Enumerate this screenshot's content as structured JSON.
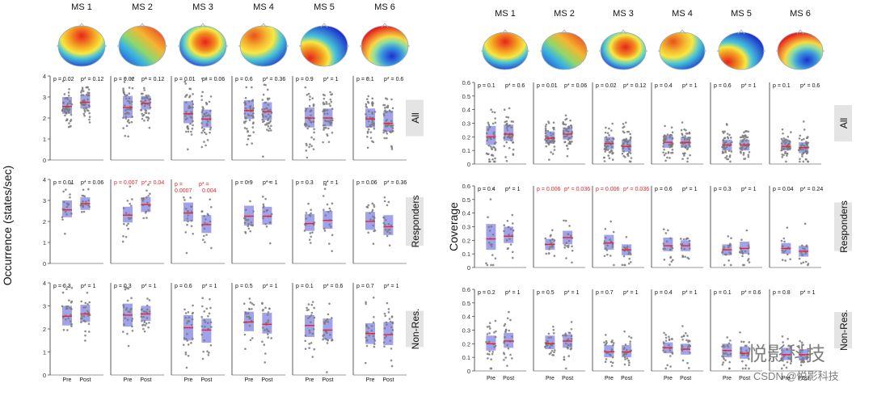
{
  "ms_labels": [
    "MS 1",
    "MS 2",
    "MS 3",
    "MS 4",
    "MS 5",
    "MS 6"
  ],
  "row_labels": [
    "All",
    "Responders",
    "Non-Res."
  ],
  "x_labels": [
    "Pre",
    "Post"
  ],
  "watermark": {
    "brand": "悦影科技",
    "csdn": "CSDN @悦影科技"
  },
  "colors": {
    "box_fill": "#8f93e8",
    "dot": "#7a7a7a",
    "mean_line": "#e8232a",
    "sig_text": "#e8232a",
    "row_label_bg": "#e4e4e4"
  },
  "topomaps": [
    {
      "ms": "MS 1",
      "pattern": "fronto-central positive (red/yellow top), blue bottom"
    },
    {
      "ms": "MS 2",
      "pattern": "left-right diagonal, red right"
    },
    {
      "ms": "MS 3",
      "pattern": "central red blob, blue periphery"
    },
    {
      "ms": "MS 4",
      "pattern": "red/yellow upper-left, blue lower-right"
    },
    {
      "ms": "MS 5",
      "pattern": "red lower-left, blue upper-right"
    },
    {
      "ms": "MS 6",
      "pattern": "red upper, blue lower-right"
    }
  ],
  "chart_data": [
    {
      "type": "scatter",
      "ylabel": "Occurrence (states/sec)",
      "ylim": [
        0,
        4
      ],
      "yticks": [
        0,
        1,
        2,
        3,
        4
      ],
      "categories": [
        "Pre",
        "Post"
      ],
      "panels": [
        {
          "row": "All",
          "ms": "MS 1",
          "stats": {
            "p": "p = 0.02",
            "padj": "p* = 0.12",
            "sig": false
          },
          "pre": {
            "mean": 2.55,
            "q1": 2.2,
            "q3": 3.0,
            "n": 45
          },
          "post": {
            "mean": 2.75,
            "q1": 2.45,
            "q3": 3.1,
            "n": 45
          }
        },
        {
          "row": "All",
          "ms": "MS 2",
          "stats": {
            "p": "p = 0.02",
            "padj": "p* = 0.12",
            "sig": false
          },
          "pre": {
            "mean": 2.5,
            "q1": 2.0,
            "q3": 3.05,
            "n": 45
          },
          "post": {
            "mean": 2.7,
            "q1": 2.4,
            "q3": 3.05,
            "n": 45
          }
        },
        {
          "row": "All",
          "ms": "MS 3",
          "stats": {
            "p": "p = 0.01",
            "padj": "p* = 0.06",
            "sig": false
          },
          "pre": {
            "mean": 2.2,
            "q1": 1.75,
            "q3": 2.8,
            "n": 45
          },
          "post": {
            "mean": 1.95,
            "q1": 1.55,
            "q3": 2.4,
            "n": 45
          }
        },
        {
          "row": "All",
          "ms": "MS 4",
          "stats": {
            "p": "p = 0.6",
            "padj": "p* = 0.36",
            "sig": false
          },
          "pre": {
            "mean": 2.35,
            "q1": 1.95,
            "q3": 2.85,
            "n": 45
          },
          "post": {
            "mean": 2.3,
            "q1": 1.9,
            "q3": 2.75,
            "n": 45
          }
        },
        {
          "row": "All",
          "ms": "MS 5",
          "stats": {
            "p": "p = 0.9",
            "padj": "p* = 1",
            "sig": false
          },
          "pre": {
            "mean": 2.0,
            "q1": 1.55,
            "q3": 2.5,
            "n": 45
          },
          "post": {
            "mean": 2.0,
            "q1": 1.6,
            "q3": 2.45,
            "n": 45
          }
        },
        {
          "row": "All",
          "ms": "MS 6",
          "stats": {
            "p": "p = 0.1",
            "padj": "p* = 0.6",
            "sig": false
          },
          "pre": {
            "mean": 1.95,
            "q1": 1.55,
            "q3": 2.45,
            "n": 45
          },
          "post": {
            "mean": 1.75,
            "q1": 1.35,
            "q3": 2.35,
            "n": 45
          }
        },
        {
          "row": "Responders",
          "ms": "MS 1",
          "stats": {
            "p": "p = 0.01",
            "padj": "p* = 0.06",
            "sig": false
          },
          "pre": {
            "mean": 2.55,
            "q1": 2.2,
            "q3": 3.0,
            "n": 18
          },
          "post": {
            "mean": 2.85,
            "q1": 2.55,
            "q3": 3.15,
            "n": 18
          }
        },
        {
          "row": "Responders",
          "ms": "MS 2",
          "stats": {
            "p": "p = 0.007",
            "padj": "p* = 0.04",
            "sig": true
          },
          "pre": {
            "mean": 2.3,
            "q1": 1.95,
            "q3": 2.7,
            "n": 18
          },
          "post": {
            "mean": 2.8,
            "q1": 2.45,
            "q3": 3.15,
            "n": 18
          }
        },
        {
          "row": "Responders",
          "ms": "MS 3",
          "stats": {
            "p": "p = 0.0007",
            "padj": "p* = 0.004",
            "sig": true
          },
          "pre": {
            "mean": 2.4,
            "q1": 2.0,
            "q3": 2.9,
            "n": 18
          },
          "post": {
            "mean": 1.85,
            "q1": 1.45,
            "q3": 2.3,
            "n": 18
          }
        },
        {
          "row": "Responders",
          "ms": "MS 4",
          "stats": {
            "p": "p = 0.9",
            "padj": "p* = 1",
            "sig": false
          },
          "pre": {
            "mean": 2.25,
            "q1": 1.8,
            "q3": 2.75,
            "n": 18
          },
          "post": {
            "mean": 2.25,
            "q1": 1.85,
            "q3": 2.7,
            "n": 18
          }
        },
        {
          "row": "Responders",
          "ms": "MS 5",
          "stats": {
            "p": "p = 0.3",
            "padj": "p* = 1",
            "sig": false
          },
          "pre": {
            "mean": 1.9,
            "q1": 1.55,
            "q3": 2.35,
            "n": 18
          },
          "post": {
            "mean": 2.05,
            "q1": 1.65,
            "q3": 2.5,
            "n": 18
          }
        },
        {
          "row": "Responders",
          "ms": "MS 6",
          "stats": {
            "p": "p = 0.06",
            "padj": "p* = 0.36",
            "sig": false
          },
          "pre": {
            "mean": 2.0,
            "q1": 1.6,
            "q3": 2.45,
            "n": 18
          },
          "post": {
            "mean": 1.75,
            "q1": 1.35,
            "q3": 2.3,
            "n": 18
          }
        },
        {
          "row": "Non-Res.",
          "ms": "MS 1",
          "stats": {
            "p": "p = 0.3",
            "padj": "p* = 1",
            "sig": false
          },
          "pre": {
            "mean": 2.55,
            "q1": 2.15,
            "q3": 3.0,
            "n": 25
          },
          "post": {
            "mean": 2.65,
            "q1": 2.3,
            "q3": 3.05,
            "n": 25
          }
        },
        {
          "row": "Non-Res.",
          "ms": "MS 2",
          "stats": {
            "p": "p = 0.3",
            "padj": "p* = 1",
            "sig": false
          },
          "pre": {
            "mean": 2.6,
            "q1": 2.1,
            "q3": 3.1,
            "n": 25
          },
          "post": {
            "mean": 2.65,
            "q1": 2.35,
            "q3": 3.0,
            "n": 25
          }
        },
        {
          "row": "Non-Res.",
          "ms": "MS 3",
          "stats": {
            "p": "p = 0.6",
            "padj": "p* = 1",
            "sig": false
          },
          "pre": {
            "mean": 2.05,
            "q1": 1.5,
            "q3": 2.6,
            "n": 25
          },
          "post": {
            "mean": 1.95,
            "q1": 1.4,
            "q3": 2.45,
            "n": 25
          }
        },
        {
          "row": "Non-Res.",
          "ms": "MS 4",
          "stats": {
            "p": "p = 0.5",
            "padj": "p* = 1",
            "sig": false
          },
          "pre": {
            "mean": 2.3,
            "q1": 1.9,
            "q3": 2.75,
            "n": 25
          },
          "post": {
            "mean": 2.2,
            "q1": 1.8,
            "q3": 2.7,
            "n": 25
          }
        },
        {
          "row": "Non-Res.",
          "ms": "MS 5",
          "stats": {
            "p": "p = 0.1",
            "padj": "p* = 0.6",
            "sig": false
          },
          "pre": {
            "mean": 2.15,
            "q1": 1.65,
            "q3": 2.6,
            "n": 25
          },
          "post": {
            "mean": 1.95,
            "q1": 1.55,
            "q3": 2.45,
            "n": 25
          }
        },
        {
          "row": "Non-Res.",
          "ms": "MS 6",
          "stats": {
            "p": "p = 0.7",
            "padj": "p* = 1",
            "sig": false
          },
          "pre": {
            "mean": 1.8,
            "q1": 1.35,
            "q3": 2.25,
            "n": 25
          },
          "post": {
            "mean": 1.75,
            "q1": 1.3,
            "q3": 2.3,
            "n": 25
          }
        }
      ]
    },
    {
      "type": "scatter",
      "ylabel": "Coverage",
      "ylim": [
        0,
        0.6
      ],
      "yticks": [
        0,
        0.1,
        0.2,
        0.3,
        0.4,
        0.5,
        0.6
      ],
      "categories": [
        "Pre",
        "Post"
      ],
      "panels": [
        {
          "row": "All",
          "ms": "MS 1",
          "stats": {
            "p": "p = 0.1",
            "padj": "p* = 0.6",
            "sig": false
          },
          "pre": {
            "mean": 0.2,
            "q1": 0.14,
            "q3": 0.28,
            "n": 45
          },
          "post": {
            "mean": 0.22,
            "q1": 0.17,
            "q3": 0.29,
            "n": 45
          }
        },
        {
          "row": "All",
          "ms": "MS 2",
          "stats": {
            "p": "p = 0.01",
            "padj": "p* = 0.06",
            "sig": false
          },
          "pre": {
            "mean": 0.19,
            "q1": 0.15,
            "q3": 0.24,
            "n": 45
          },
          "post": {
            "mean": 0.22,
            "q1": 0.18,
            "q3": 0.27,
            "n": 45
          }
        },
        {
          "row": "All",
          "ms": "MS 3",
          "stats": {
            "p": "p = 0.02",
            "padj": "p* = 0.12",
            "sig": false
          },
          "pre": {
            "mean": 0.15,
            "q1": 0.11,
            "q3": 0.2,
            "n": 45
          },
          "post": {
            "mean": 0.13,
            "q1": 0.09,
            "q3": 0.18,
            "n": 45
          }
        },
        {
          "row": "All",
          "ms": "MS 4",
          "stats": {
            "p": "p = 0.4",
            "padj": "p* = 1",
            "sig": false
          },
          "pre": {
            "mean": 0.16,
            "q1": 0.12,
            "q3": 0.21,
            "n": 45
          },
          "post": {
            "mean": 0.16,
            "q1": 0.12,
            "q3": 0.2,
            "n": 45
          }
        },
        {
          "row": "All",
          "ms": "MS 5",
          "stats": {
            "p": "p = 0.6",
            "padj": "p* = 1",
            "sig": false
          },
          "pre": {
            "mean": 0.14,
            "q1": 0.1,
            "q3": 0.18,
            "n": 45
          },
          "post": {
            "mean": 0.14,
            "q1": 0.1,
            "q3": 0.18,
            "n": 45
          }
        },
        {
          "row": "All",
          "ms": "MS 6",
          "stats": {
            "p": "p = 0.1",
            "padj": "p* = 0.6",
            "sig": false
          },
          "pre": {
            "mean": 0.13,
            "q1": 0.1,
            "q3": 0.17,
            "n": 45
          },
          "post": {
            "mean": 0.12,
            "q1": 0.08,
            "q3": 0.16,
            "n": 45
          }
        },
        {
          "row": "Responders",
          "ms": "MS 1",
          "stats": {
            "p": "p = 0.4",
            "padj": "p* = 1",
            "sig": false
          },
          "pre": {
            "mean": 0.21,
            "q1": 0.13,
            "q3": 0.32,
            "n": 18
          },
          "post": {
            "mean": 0.23,
            "q1": 0.18,
            "q3": 0.3,
            "n": 18
          }
        },
        {
          "row": "Responders",
          "ms": "MS 2",
          "stats": {
            "p": "p = 0.006",
            "padj": "p* = 0.036",
            "sig": true
          },
          "pre": {
            "mean": 0.17,
            "q1": 0.13,
            "q3": 0.21,
            "n": 18
          },
          "post": {
            "mean": 0.22,
            "q1": 0.17,
            "q3": 0.27,
            "n": 18
          }
        },
        {
          "row": "Responders",
          "ms": "MS 3",
          "stats": {
            "p": "p = 0.006",
            "padj": "p* = 0.036",
            "sig": true
          },
          "pre": {
            "mean": 0.18,
            "q1": 0.13,
            "q3": 0.24,
            "n": 18
          },
          "post": {
            "mean": 0.13,
            "q1": 0.09,
            "q3": 0.17,
            "n": 18
          }
        },
        {
          "row": "Responders",
          "ms": "MS 4",
          "stats": {
            "p": "p = 0.6",
            "padj": "p* = 1",
            "sig": false
          },
          "pre": {
            "mean": 0.16,
            "q1": 0.12,
            "q3": 0.22,
            "n": 18
          },
          "post": {
            "mean": 0.16,
            "q1": 0.12,
            "q3": 0.2,
            "n": 18
          }
        },
        {
          "row": "Responders",
          "ms": "MS 5",
          "stats": {
            "p": "p = 0.3",
            "padj": "p* = 1",
            "sig": false
          },
          "pre": {
            "mean": 0.13,
            "q1": 0.09,
            "q3": 0.17,
            "n": 18
          },
          "post": {
            "mean": 0.14,
            "q1": 0.1,
            "q3": 0.19,
            "n": 18
          }
        },
        {
          "row": "Responders",
          "ms": "MS 6",
          "stats": {
            "p": "p = 0.04",
            "padj": "p* = 0.24",
            "sig": false
          },
          "pre": {
            "mean": 0.14,
            "q1": 0.1,
            "q3": 0.18,
            "n": 18
          },
          "post": {
            "mean": 0.12,
            "q1": 0.08,
            "q3": 0.16,
            "n": 18
          }
        },
        {
          "row": "Non-Res.",
          "ms": "MS 1",
          "stats": {
            "p": "p = 0.2",
            "padj": "p* = 1",
            "sig": false
          },
          "pre": {
            "mean": 0.2,
            "q1": 0.15,
            "q3": 0.26,
            "n": 25
          },
          "post": {
            "mean": 0.22,
            "q1": 0.17,
            "q3": 0.28,
            "n": 25
          }
        },
        {
          "row": "Non-Res.",
          "ms": "MS 2",
          "stats": {
            "p": "p = 0.5",
            "padj": "p* = 1",
            "sig": false
          },
          "pre": {
            "mean": 0.2,
            "q1": 0.16,
            "q3": 0.26,
            "n": 25
          },
          "post": {
            "mean": 0.22,
            "q1": 0.17,
            "q3": 0.27,
            "n": 25
          }
        },
        {
          "row": "Non-Res.",
          "ms": "MS 3",
          "stats": {
            "p": "p = 0.7",
            "padj": "p* = 1",
            "sig": false
          },
          "pre": {
            "mean": 0.14,
            "q1": 0.1,
            "q3": 0.19,
            "n": 25
          },
          "post": {
            "mean": 0.14,
            "q1": 0.1,
            "q3": 0.19,
            "n": 25
          }
        },
        {
          "row": "Non-Res.",
          "ms": "MS 4",
          "stats": {
            "p": "p = 0.4",
            "padj": "p* = 1",
            "sig": false
          },
          "pre": {
            "mean": 0.17,
            "q1": 0.13,
            "q3": 0.21,
            "n": 25
          },
          "post": {
            "mean": 0.16,
            "q1": 0.12,
            "q3": 0.2,
            "n": 25
          }
        },
        {
          "row": "Non-Res.",
          "ms": "MS 5",
          "stats": {
            "p": "p = 0.1",
            "padj": "p* = 0.6",
            "sig": false
          },
          "pre": {
            "mean": 0.15,
            "q1": 0.1,
            "q3": 0.2,
            "n": 25
          },
          "post": {
            "mean": 0.13,
            "q1": 0.09,
            "q3": 0.18,
            "n": 25
          }
        },
        {
          "row": "Non-Res.",
          "ms": "MS 6",
          "stats": {
            "p": "p = 0.8",
            "padj": "p* = 1",
            "sig": false
          },
          "pre": {
            "mean": 0.12,
            "q1": 0.08,
            "q3": 0.17,
            "n": 25
          },
          "post": {
            "mean": 0.12,
            "q1": 0.08,
            "q3": 0.16,
            "n": 25
          }
        }
      ]
    }
  ]
}
